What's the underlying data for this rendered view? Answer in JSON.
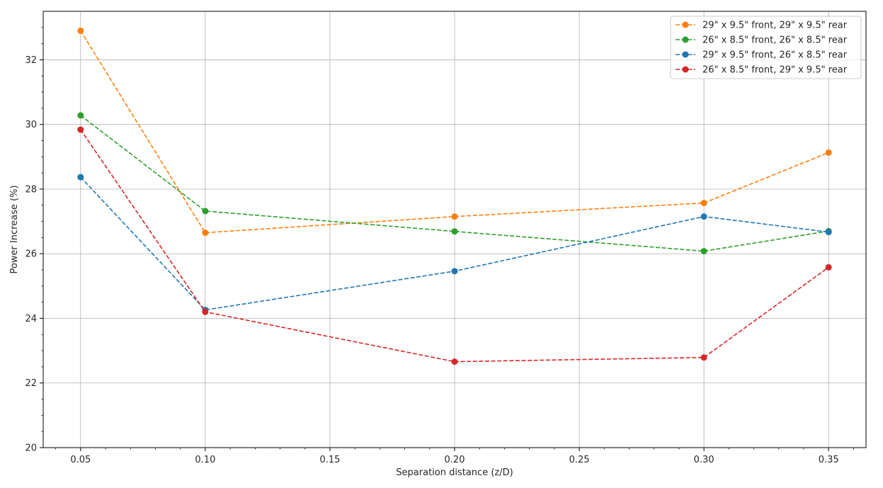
{
  "chart_data": {
    "type": "line",
    "title": "",
    "xlabel": "Separation distance (z/D)",
    "ylabel": "Power Increase (%)",
    "xlim": [
      0.035,
      0.365
    ],
    "ylim": [
      20,
      33.5
    ],
    "xticks": [
      0.05,
      0.1,
      0.15,
      0.2,
      0.25,
      0.3,
      0.35
    ],
    "xtick_labels": [
      "0.05",
      "0.10",
      "0.15",
      "0.20",
      "0.25",
      "0.30",
      "0.35"
    ],
    "yticks": [
      20,
      22,
      24,
      26,
      28,
      30,
      32
    ],
    "ytick_labels": [
      "20",
      "22",
      "24",
      "26",
      "28",
      "30",
      "32"
    ],
    "grid": true,
    "legend_position": "top-right",
    "line_style": "dashed",
    "marker": "circle",
    "x": [
      0.05,
      0.1,
      0.2,
      0.3,
      0.35
    ],
    "series": [
      {
        "name": "29\" x 9.5\" front, 29\" x 9.5\" rear",
        "color": "#ff7f0e",
        "values": [
          32.9,
          26.65,
          27.15,
          27.57,
          29.13
        ]
      },
      {
        "name": "26\" x 8.5\" front, 26\" x 8.5\" rear",
        "color": "#2ca02c",
        "values": [
          30.28,
          27.32,
          26.69,
          26.08,
          26.7
        ]
      },
      {
        "name": "29\" x 9.5\" front, 26\" x 8.5\" rear",
        "color": "#1f77b4",
        "values": [
          28.37,
          24.26,
          25.46,
          27.15,
          26.67
        ]
      },
      {
        "name": "26\" x 8.5\" front, 29\" x 9.5\" rear",
        "color": "#d62728",
        "values": [
          29.84,
          24.2,
          22.66,
          22.79,
          25.58
        ]
      }
    ]
  }
}
